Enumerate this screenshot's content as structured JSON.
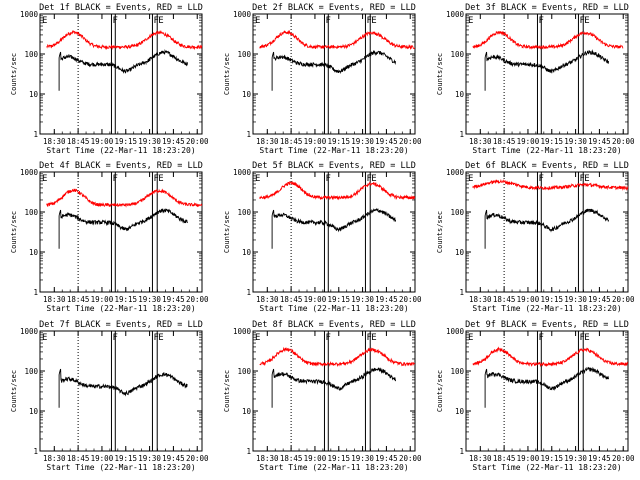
{
  "chart_data": {
    "type": "line",
    "figure_title": "",
    "ylabel": "Counts/sec",
    "xlabel": "Start Time (22-Mar-11 18:23:20)",
    "yscale": "log",
    "ylim": [
      1,
      1000
    ],
    "y_ticks": [
      1,
      10,
      100,
      1000
    ],
    "y_tick_labels": [
      "1",
      "10",
      "100",
      "1000"
    ],
    "x_ticks": [
      18.5,
      18.75,
      19.0,
      19.25,
      19.5,
      19.75,
      20.0
    ],
    "x_tick_labels": [
      "18:30",
      "18:45",
      "19:00",
      "19:15",
      "19:30",
      "19:45",
      "20:00"
    ],
    "xlim": [
      18.35,
      20.05
    ],
    "colors": {
      "events": "#000000",
      "lld": "#ff0000"
    },
    "panels": [
      {
        "title": "Det 1f BLACK = Events, RED = LLD",
        "det": 1,
        "markers": {
          "dotted": 18.75,
          "box_left": [
            19.1,
            19.14
          ],
          "box_right": [
            19.53,
            19.58
          ]
        },
        "flags": [
          "E",
          "F",
          "F",
          "E"
        ],
        "events_start": 18.55,
        "events_end": 19.9,
        "lld_start": 18.42,
        "lld_end": 20.05
      },
      {
        "title": "Det 2f BLACK = Events, RED = LLD",
        "det": 2,
        "markers": {
          "dotted": 18.75,
          "box_left": [
            19.1,
            19.14
          ],
          "box_right": [
            19.53,
            19.58
          ]
        },
        "flags": [
          "E",
          "F",
          "F",
          "E"
        ],
        "events_start": 18.55,
        "events_end": 19.85,
        "lld_start": 18.42,
        "lld_end": 20.05
      },
      {
        "title": "Det 3f BLACK = Events, RED = LLD",
        "det": 3,
        "markers": {
          "dotted": 18.75,
          "box_left": [
            19.1,
            19.14
          ],
          "box_right": [
            19.53,
            19.58
          ]
        },
        "flags": [
          "E",
          "F",
          "F",
          "E"
        ],
        "events_start": 18.55,
        "events_end": 19.85,
        "lld_start": 18.42,
        "lld_end": 20.0
      },
      {
        "title": "Det 4f BLACK = Events, RED = LLD",
        "det": 4,
        "markers": {
          "dotted": 18.75,
          "box_left": [
            19.1,
            19.14
          ],
          "box_right": [
            19.53,
            19.58
          ]
        },
        "flags": [
          "E",
          "F",
          "F",
          "E"
        ],
        "events_start": 18.55,
        "events_end": 19.9,
        "lld_start": 18.42,
        "lld_end": 20.05
      },
      {
        "title": "Det 5f BLACK = Events, RED = LLD",
        "det": 5,
        "markers": {
          "dotted": 18.75,
          "box_left": [
            19.1,
            19.14
          ],
          "box_right": [
            19.53,
            19.58
          ]
        },
        "flags": [
          "E",
          "F",
          "F",
          "E"
        ],
        "events_start": 18.55,
        "events_end": 19.85,
        "lld_start": 18.42,
        "lld_end": 20.05
      },
      {
        "title": "Det 6f BLACK = Events, RED = LLD",
        "det": 6,
        "markers": {
          "dotted": 18.75,
          "box_left": [
            19.1,
            19.14
          ],
          "box_right": [
            19.53,
            19.58
          ]
        },
        "flags": [
          "E",
          "F",
          "F",
          "E"
        ],
        "events_start": 18.55,
        "events_end": 19.85,
        "lld_start": 18.42,
        "lld_end": 20.05
      },
      {
        "title": "Det 7f BLACK = Events, RED = LLD",
        "det": 7,
        "markers": {
          "dotted": 18.75,
          "box_left": [
            19.1,
            19.14
          ],
          "box_right": [
            19.53,
            19.58
          ]
        },
        "flags": [
          "E",
          "F",
          "F",
          "E"
        ],
        "events_start": 18.55,
        "events_end": 19.9,
        "lld_start": null,
        "lld_end": null
      },
      {
        "title": "Det 8f BLACK = Events, RED = LLD",
        "det": 8,
        "markers": {
          "dotted": 18.75,
          "box_left": [
            19.1,
            19.14
          ],
          "box_right": [
            19.53,
            19.58
          ]
        },
        "flags": [
          "E",
          "F",
          "F",
          "E"
        ],
        "events_start": 18.55,
        "events_end": 19.85,
        "lld_start": 18.42,
        "lld_end": 20.05
      },
      {
        "title": "Det 9f BLACK = Events, RED = LLD",
        "det": 9,
        "markers": {
          "dotted": 18.75,
          "box_left": [
            19.1,
            19.14
          ],
          "box_right": [
            19.53,
            19.58
          ]
        },
        "flags": [
          "E",
          "F",
          "F",
          "E"
        ],
        "events_start": 18.55,
        "events_end": 19.85,
        "lld_start": 18.42,
        "lld_end": 20.05
      }
    ]
  }
}
